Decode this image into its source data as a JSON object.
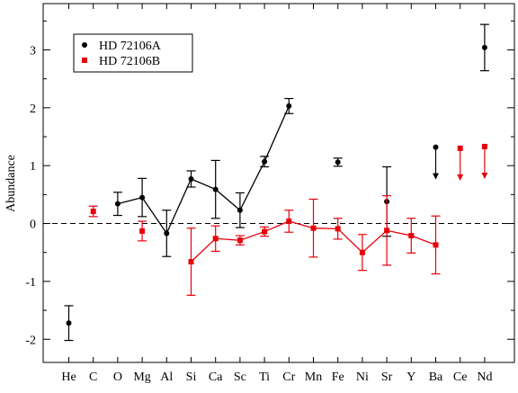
{
  "chart_data": {
    "type": "scatter",
    "ylabel": "Abundance",
    "categories": [
      "He",
      "C",
      "O",
      "Mg",
      "Al",
      "Si",
      "Ca",
      "Sc",
      "Ti",
      "Cr",
      "Mn",
      "Fe",
      "Ni",
      "Sr",
      "Y",
      "Ba",
      "Ce",
      "Nd"
    ],
    "ylim": [
      -2.4,
      3.8
    ],
    "yticks": [
      -2,
      -1,
      0,
      1,
      2,
      3
    ],
    "reference_line": 0,
    "legend_position": "top-left",
    "series": [
      {
        "name": "HD 72106A",
        "color": "#000000",
        "marker": "circle",
        "points": [
          {
            "x": "He",
            "y": -1.72,
            "err": 0.3
          },
          {
            "x": "O",
            "y": 0.34,
            "err": 0.2
          },
          {
            "x": "Mg",
            "y": 0.45,
            "err": 0.33
          },
          {
            "x": "Al",
            "y": -0.17,
            "err": 0.4
          },
          {
            "x": "Si",
            "y": 0.77,
            "err": 0.14
          },
          {
            "x": "Ca",
            "y": 0.59,
            "err": 0.5
          },
          {
            "x": "Sc",
            "y": 0.23,
            "err": 0.3
          },
          {
            "x": "Ti",
            "y": 1.07,
            "err": 0.09
          },
          {
            "x": "Cr",
            "y": 2.03,
            "err": 0.13
          },
          {
            "x": "Fe",
            "y": 1.06,
            "err": 0.07
          },
          {
            "x": "Sr",
            "y": 0.38,
            "err": 0.6
          },
          {
            "x": "Nd",
            "y": 3.04,
            "err": 0.4
          }
        ],
        "connected": [
          "O",
          "Mg",
          "Al",
          "Si",
          "Ca",
          "Sc",
          "Ti",
          "Cr"
        ],
        "upper_limits": [
          {
            "x": "Ba",
            "y": 1.32
          }
        ]
      },
      {
        "name": "HD 72106B",
        "color": "#e8000b",
        "marker": "square",
        "points": [
          {
            "x": "C",
            "y": 0.21,
            "err": 0.09
          },
          {
            "x": "Mg",
            "y": -0.13,
            "err": 0.17
          },
          {
            "x": "Si",
            "y": -0.66,
            "err": 0.58
          },
          {
            "x": "Ca",
            "y": -0.26,
            "err": 0.22
          },
          {
            "x": "Sc",
            "y": -0.29,
            "err": 0.08
          },
          {
            "x": "Ti",
            "y": -0.14,
            "err": 0.08
          },
          {
            "x": "Cr",
            "y": 0.04,
            "err": 0.19
          },
          {
            "x": "Mn",
            "y": -0.08,
            "err": 0.5
          },
          {
            "x": "Fe",
            "y": -0.09,
            "err": 0.18
          },
          {
            "x": "Ni",
            "y": -0.5,
            "err": 0.31
          },
          {
            "x": "Sr",
            "y": -0.12,
            "err": 0.6
          },
          {
            "x": "Y",
            "y": -0.21,
            "err": 0.3
          },
          {
            "x": "Ba",
            "y": -0.37,
            "err": 0.5
          }
        ],
        "connected": [
          "Si",
          "Ca",
          "Sc",
          "Ti",
          "Cr",
          "Mn",
          "Fe",
          "Ni",
          "Sr",
          "Y",
          "Ba"
        ],
        "upper_limits": [
          {
            "x": "Ce",
            "y": 1.3
          },
          {
            "x": "Nd",
            "y": 1.33
          }
        ]
      }
    ]
  }
}
